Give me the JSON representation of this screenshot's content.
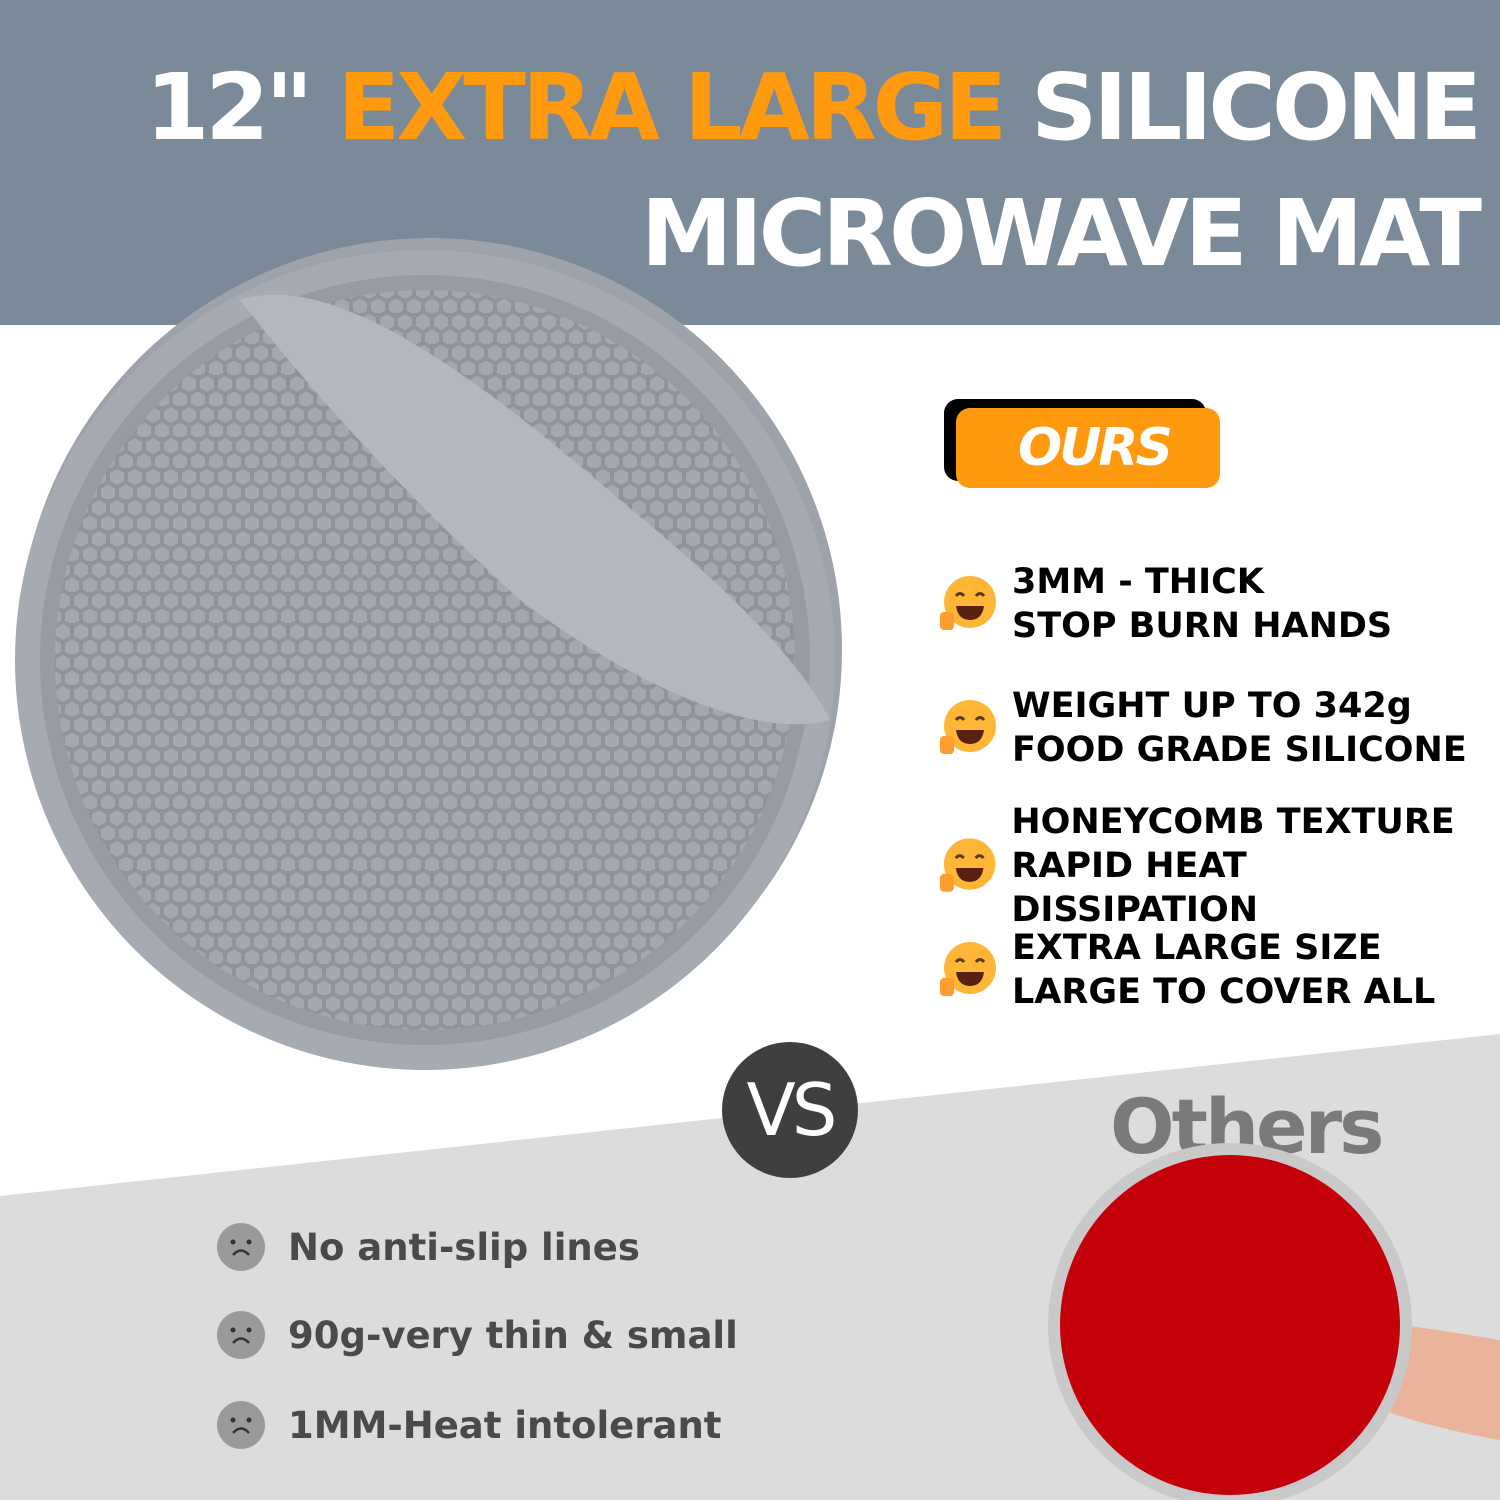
{
  "header": {
    "title_line1_prefix": "12\"",
    "title_line1_accent": "EXTRA LARGE",
    "title_line1_suffix": "SILICONE",
    "title_line2": "MICROWAVE MAT"
  },
  "ours": {
    "badge_label": "OURS",
    "features": [
      {
        "icon": "laughing-face-icon",
        "line1": "3MM - THICK",
        "line2": "STOP BURN HANDS"
      },
      {
        "icon": "laughing-face-icon",
        "line1": "WEIGHT UP TO 342g",
        "line2": "FOOD GRADE SILICONE"
      },
      {
        "icon": "laughing-face-icon",
        "line1": "HONEYCOMB TEXTURE",
        "line2": "RAPID HEAT DISSIPATION"
      },
      {
        "icon": "laughing-face-icon",
        "line1": "EXTRA LARGE SIZE",
        "line2": "LARGE TO COVER ALL"
      }
    ]
  },
  "versus_label": "VS",
  "others": {
    "heading": "Others",
    "cons": [
      {
        "icon": "sad-face-icon",
        "text": "No anti-slip lines"
      },
      {
        "icon": "sad-face-icon",
        "text": "90g-very thin  & small"
      },
      {
        "icon": "sad-face-icon",
        "text": "1MM-Heat intolerant"
      }
    ]
  },
  "colors": {
    "banner": "#7b8a99",
    "accent": "#ff9a0f",
    "mat": "#9a9ea6",
    "others_mat": "#c8000a",
    "lower_bg": "#dcdcdc"
  }
}
